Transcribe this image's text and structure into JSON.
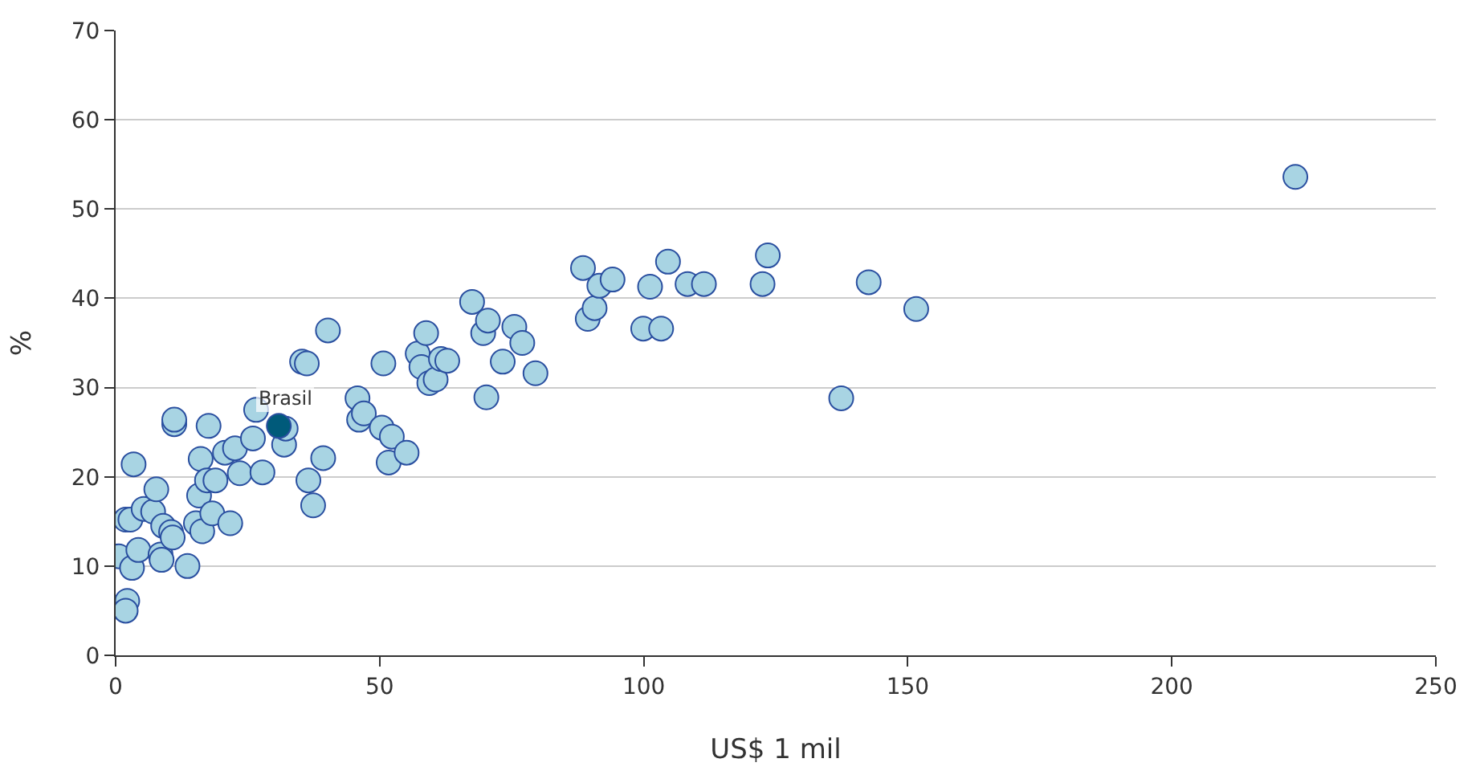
{
  "chart_data": {
    "type": "scatter",
    "xlabel": "US$ 1 mil",
    "ylabel": "%",
    "xlim": [
      0,
      250
    ],
    "ylim": [
      0,
      70
    ],
    "xticks": [
      0,
      50,
      100,
      150,
      200,
      250
    ],
    "yticks": [
      0,
      10,
      20,
      30,
      40,
      50,
      60,
      70
    ],
    "grid": "y",
    "marker": "circle",
    "series": [
      {
        "color": "#a8d4e3",
        "x": [
          0.6,
          1.9,
          2.2,
          1.9,
          3.1,
          2.8,
          3.4,
          4.3,
          5.3,
          7.1,
          7.7,
          8.5,
          8.7,
          9.0,
          10.5,
          10.8,
          11.1,
          11.1,
          13.6,
          15.2,
          15.8,
          16.1,
          16.4,
          17.3,
          17.6,
          18.3,
          18.9,
          20.7,
          21.7,
          22.6,
          23.5,
          26.0,
          26.6,
          27.8,
          31.9,
          32.2,
          35.3,
          36.2,
          36.5,
          37.4,
          39.3,
          40.2,
          45.8,
          46.1,
          47.0,
          50.4,
          50.7,
          51.7,
          52.3,
          55.1,
          57.2,
          57.9,
          58.8,
          59.4,
          60.6,
          61.6,
          62.8,
          67.5,
          69.6,
          70.5,
          70.2,
          73.3,
          75.5,
          77.0,
          79.5,
          88.5,
          89.4,
          90.7,
          91.6,
          94.1,
          99.9,
          101.2,
          103.3,
          104.6,
          108.3,
          111.4,
          122.5,
          123.5,
          137.4,
          142.6,
          151.6,
          223.4
        ],
        "values": [
          11.1,
          15.2,
          6.1,
          5.0,
          9.8,
          15.2,
          21.4,
          11.8,
          16.4,
          16.1,
          18.6,
          11.3,
          10.7,
          14.5,
          13.8,
          13.2,
          25.9,
          26.4,
          10.0,
          14.8,
          17.9,
          22.0,
          13.9,
          19.6,
          25.7,
          15.9,
          19.6,
          22.7,
          14.8,
          23.2,
          20.4,
          24.3,
          27.5,
          20.5,
          23.6,
          25.4,
          32.9,
          32.7,
          19.6,
          16.8,
          22.1,
          36.4,
          28.8,
          26.4,
          27.1,
          25.5,
          32.7,
          21.6,
          24.5,
          22.7,
          33.8,
          32.3,
          36.1,
          30.5,
          30.9,
          33.2,
          33.0,
          39.6,
          36.1,
          37.5,
          28.9,
          32.9,
          36.8,
          35.0,
          31.6,
          43.4,
          37.7,
          38.9,
          41.4,
          42.1,
          36.6,
          41.3,
          36.6,
          44.1,
          41.6,
          41.6,
          41.6,
          44.8,
          28.8,
          41.8,
          38.8,
          53.6
        ]
      },
      {
        "color": "#005a7a",
        "x": [
          30.9
        ],
        "values": [
          25.7
        ]
      }
    ],
    "annotations": [
      {
        "text": "Brasil",
        "x": 30.9,
        "y": 25.7
      }
    ]
  }
}
